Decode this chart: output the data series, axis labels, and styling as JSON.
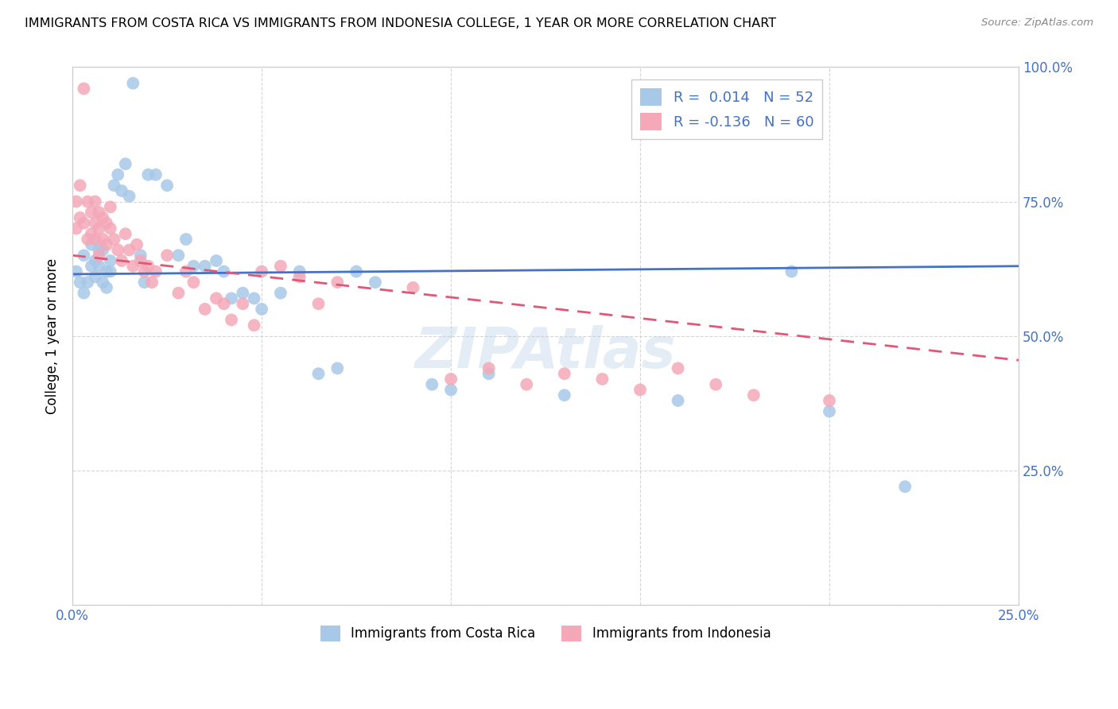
{
  "title": "IMMIGRANTS FROM COSTA RICA VS IMMIGRANTS FROM INDONESIA COLLEGE, 1 YEAR OR MORE CORRELATION CHART",
  "source": "Source: ZipAtlas.com",
  "ylabel": "College, 1 year or more",
  "legend_labels": [
    "Immigrants from Costa Rica",
    "Immigrants from Indonesia"
  ],
  "R_costa_rica": 0.014,
  "N_costa_rica": 52,
  "R_indonesia": -0.136,
  "N_indonesia": 60,
  "color_costa_rica": "#a8c8e8",
  "color_indonesia": "#f4a8b8",
  "line_color_costa_rica": "#4472c4",
  "line_color_indonesia": "#e05878",
  "background_color": "#ffffff",
  "grid_color": "#cccccc",
  "watermark": "ZIPAtlas",
  "xlim": [
    0.0,
    0.25
  ],
  "ylim": [
    0.0,
    1.0
  ],
  "cr_line_x0": 0.0,
  "cr_line_y0": 0.615,
  "cr_line_x1": 0.25,
  "cr_line_y1": 0.63,
  "id_line_x0": 0.0,
  "id_line_y0": 0.65,
  "id_line_x1": 0.25,
  "id_line_y1": 0.455,
  "costa_rica_x": [
    0.001,
    0.002,
    0.003,
    0.003,
    0.004,
    0.005,
    0.005,
    0.006,
    0.006,
    0.007,
    0.007,
    0.008,
    0.008,
    0.009,
    0.009,
    0.01,
    0.01,
    0.011,
    0.012,
    0.013,
    0.014,
    0.015,
    0.016,
    0.018,
    0.019,
    0.02,
    0.022,
    0.025,
    0.028,
    0.03,
    0.032,
    0.035,
    0.038,
    0.04,
    0.042,
    0.045,
    0.048,
    0.05,
    0.055,
    0.06,
    0.065,
    0.07,
    0.075,
    0.08,
    0.095,
    0.1,
    0.11,
    0.13,
    0.16,
    0.19,
    0.2,
    0.22
  ],
  "costa_rica_y": [
    0.62,
    0.6,
    0.58,
    0.65,
    0.6,
    0.63,
    0.67,
    0.61,
    0.64,
    0.66,
    0.63,
    0.6,
    0.66,
    0.62,
    0.59,
    0.64,
    0.62,
    0.78,
    0.8,
    0.77,
    0.82,
    0.76,
    0.97,
    0.65,
    0.6,
    0.8,
    0.8,
    0.78,
    0.65,
    0.68,
    0.63,
    0.63,
    0.64,
    0.62,
    0.57,
    0.58,
    0.57,
    0.55,
    0.58,
    0.62,
    0.43,
    0.44,
    0.62,
    0.6,
    0.41,
    0.4,
    0.43,
    0.39,
    0.38,
    0.62,
    0.36,
    0.22
  ],
  "indonesia_x": [
    0.001,
    0.001,
    0.002,
    0.002,
    0.003,
    0.003,
    0.004,
    0.004,
    0.005,
    0.005,
    0.006,
    0.006,
    0.006,
    0.007,
    0.007,
    0.007,
    0.008,
    0.008,
    0.009,
    0.009,
    0.01,
    0.01,
    0.011,
    0.012,
    0.013,
    0.014,
    0.015,
    0.016,
    0.017,
    0.018,
    0.019,
    0.02,
    0.021,
    0.022,
    0.025,
    0.028,
    0.03,
    0.032,
    0.035,
    0.038,
    0.04,
    0.042,
    0.045,
    0.048,
    0.05,
    0.055,
    0.06,
    0.065,
    0.07,
    0.09,
    0.1,
    0.11,
    0.12,
    0.13,
    0.14,
    0.15,
    0.16,
    0.17,
    0.18,
    0.2
  ],
  "indonesia_y": [
    0.7,
    0.75,
    0.72,
    0.78,
    0.71,
    0.96,
    0.75,
    0.68,
    0.73,
    0.69,
    0.75,
    0.71,
    0.68,
    0.73,
    0.7,
    0.65,
    0.72,
    0.68,
    0.71,
    0.67,
    0.74,
    0.7,
    0.68,
    0.66,
    0.64,
    0.69,
    0.66,
    0.63,
    0.67,
    0.64,
    0.62,
    0.63,
    0.6,
    0.62,
    0.65,
    0.58,
    0.62,
    0.6,
    0.55,
    0.57,
    0.56,
    0.53,
    0.56,
    0.52,
    0.62,
    0.63,
    0.61,
    0.56,
    0.6,
    0.59,
    0.42,
    0.44,
    0.41,
    0.43,
    0.42,
    0.4,
    0.44,
    0.41,
    0.39,
    0.38
  ]
}
